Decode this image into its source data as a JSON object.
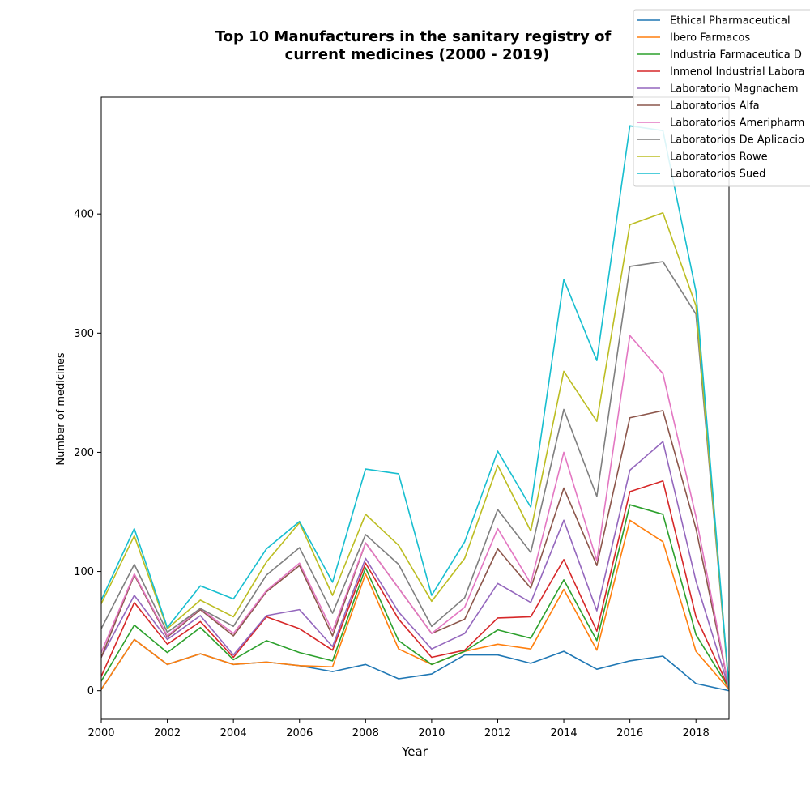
{
  "chart_data": {
    "type": "line",
    "title": "Top 10 Manufacturers in the sanitary registry of current medicines (2000 - 2019)",
    "title_lines": [
      "Top 10 Manufacturers in the sanitary registry of",
      "current medicines (2000 - 2019)"
    ],
    "xlabel": "Year",
    "ylabel": "Number of medicines",
    "xlim": [
      2000,
      2019
    ],
    "ylim": [
      -24,
      498
    ],
    "x_ticks": [
      2000,
      2002,
      2004,
      2006,
      2008,
      2010,
      2012,
      2014,
      2016,
      2018
    ],
    "y_ticks": [
      0,
      100,
      200,
      300,
      400
    ],
    "grid": false,
    "legend_position": "top-right",
    "x": [
      2000,
      2001,
      2002,
      2003,
      2004,
      2005,
      2006,
      2007,
      2008,
      2009,
      2010,
      2011,
      2012,
      2013,
      2014,
      2015,
      2016,
      2017,
      2018,
      2019
    ],
    "series": [
      {
        "name": "Ethical Pharmaceutical",
        "color": "#1f77b4",
        "values": [
          1,
          43,
          22,
          31,
          22,
          24,
          21,
          16,
          22,
          10,
          14,
          30,
          30,
          23,
          33,
          18,
          25,
          29,
          6,
          0
        ]
      },
      {
        "name": "Ibero Farmacos",
        "color": "#ff7f0e",
        "values": [
          1,
          43,
          22,
          31,
          22,
          24,
          21,
          20,
          98,
          35,
          22,
          33,
          39,
          35,
          85,
          34,
          143,
          125,
          33,
          1
        ]
      },
      {
        "name": "Industria Farmaceutica D",
        "color": "#2ca02c",
        "values": [
          8,
          55,
          32,
          53,
          26,
          42,
          32,
          25,
          103,
          42,
          22,
          33,
          51,
          44,
          93,
          42,
          156,
          148,
          47,
          2
        ]
      },
      {
        "name": "Inmenol Industrial Labora",
        "color": "#d62728",
        "values": [
          12,
          74,
          39,
          58,
          28,
          62,
          52,
          34,
          107,
          60,
          28,
          34,
          61,
          62,
          110,
          50,
          167,
          176,
          62,
          2
        ]
      },
      {
        "name": "Laboratorio Magnachem",
        "color": "#9467bd",
        "values": [
          28,
          80,
          43,
          63,
          30,
          63,
          68,
          37,
          111,
          66,
          35,
          48,
          90,
          74,
          143,
          67,
          185,
          209,
          92,
          2
        ]
      },
      {
        "name": "Laboratorios Alfa",
        "color": "#8c564b",
        "values": [
          28,
          97,
          45,
          68,
          46,
          83,
          105,
          46,
          124,
          86,
          48,
          60,
          119,
          86,
          170,
          105,
          229,
          235,
          136,
          2
        ]
      },
      {
        "name": "Laboratorios Ameripharm",
        "color": "#e377c2",
        "values": [
          32,
          98,
          46,
          69,
          48,
          84,
          107,
          50,
          124,
          86,
          48,
          70,
          136,
          90,
          200,
          109,
          298,
          266,
          146,
          2
        ]
      },
      {
        "name": "Laboratorios De Aplicacio",
        "color": "#7f7f7f",
        "values": [
          52,
          106,
          49,
          69,
          54,
          97,
          120,
          65,
          131,
          106,
          54,
          78,
          152,
          116,
          236,
          163,
          356,
          360,
          316,
          2
        ]
      },
      {
        "name": "Laboratorios Rowe",
        "color": "#bcbd22",
        "values": [
          73,
          130,
          52,
          76,
          62,
          108,
          141,
          80,
          148,
          122,
          75,
          111,
          189,
          134,
          268,
          226,
          391,
          401,
          323,
          3
        ]
      },
      {
        "name": "Laboratorios Sued",
        "color": "#17becf",
        "values": [
          76,
          136,
          53,
          88,
          77,
          119,
          142,
          91,
          186,
          182,
          80,
          125,
          201,
          154,
          345,
          277,
          474,
          470,
          335,
          3
        ]
      }
    ]
  }
}
